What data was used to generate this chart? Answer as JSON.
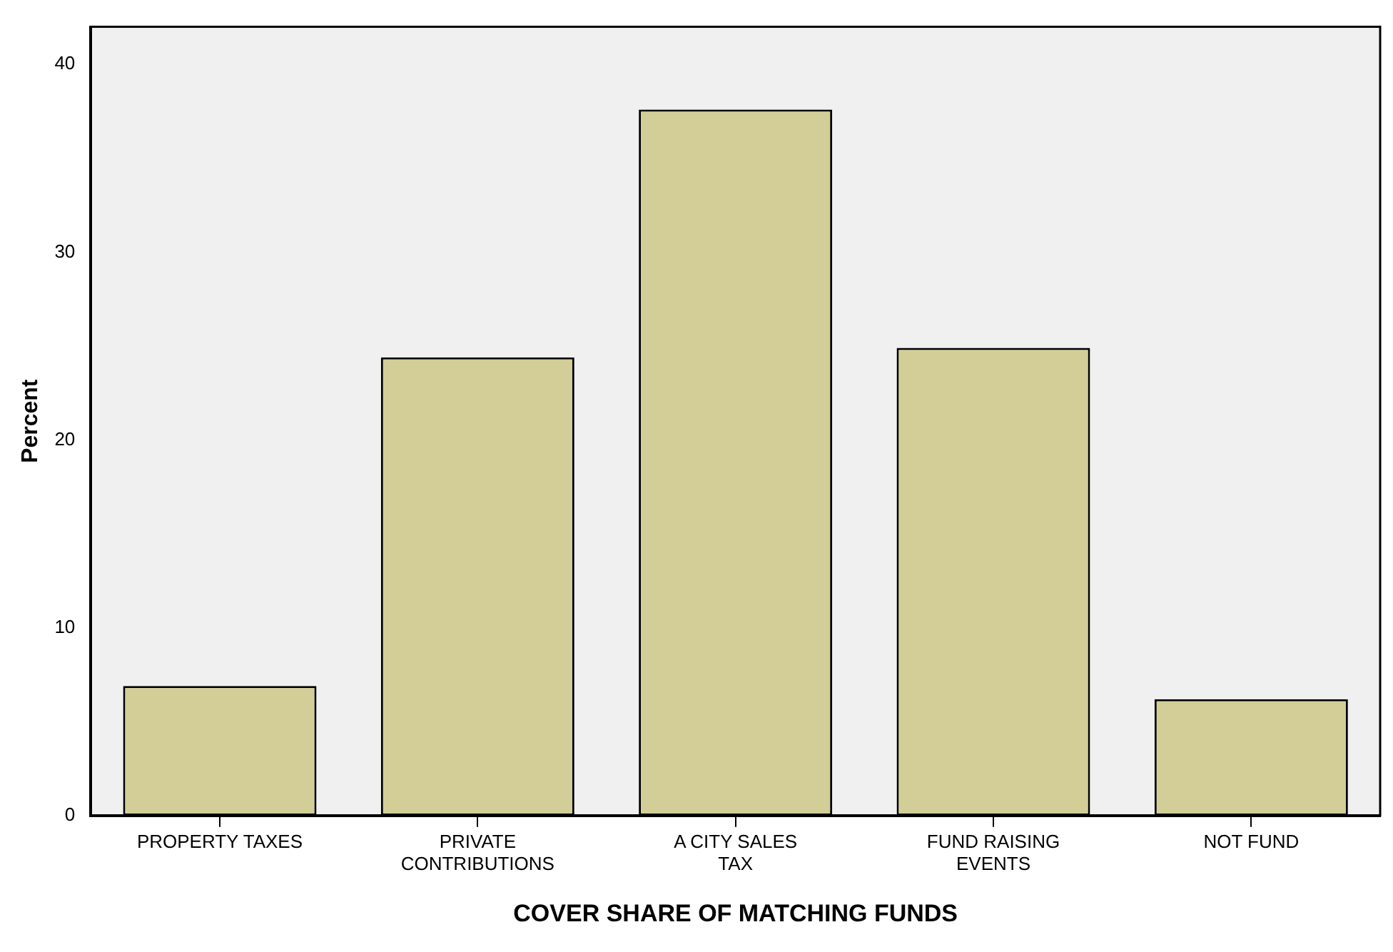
{
  "chart_data": {
    "type": "bar",
    "xlabel": "COVER SHARE OF MATCHING FUNDS",
    "ylabel": "Percent",
    "categories": [
      "PROPERTY TAXES",
      "PRIVATE CONTRIBUTIONS",
      "A CITY SALES TAX",
      "FUND RAISING EVENTS",
      "NOT FUND"
    ],
    "values": [
      6.9,
      24.4,
      37.6,
      24.9,
      6.2
    ],
    "color": "#d3ce97",
    "ylim": [
      0,
      42
    ],
    "yticks": [
      0,
      10,
      20,
      30,
      40
    ],
    "grid": false,
    "legend": false
  }
}
